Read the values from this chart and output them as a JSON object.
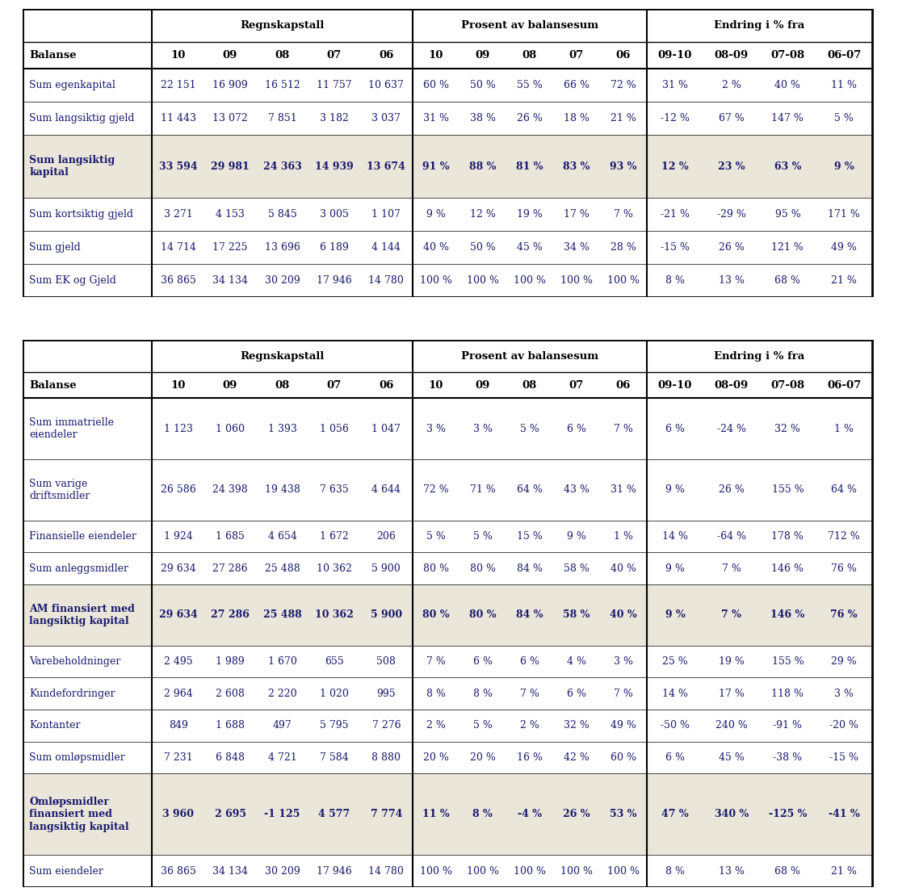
{
  "table1": {
    "title_sections": [
      "Regnskapstall",
      "Prosent av balansesum",
      "Endring i % fra"
    ],
    "col_header_label": "Balanse",
    "year_headers": [
      "10",
      "09",
      "08",
      "07",
      "06"
    ],
    "pct_headers": [
      "10",
      "09",
      "08",
      "07",
      "06"
    ],
    "chg_headers": [
      "09-10",
      "08-09",
      "07-08",
      "06-07"
    ],
    "rows": [
      {
        "label": "Sum egenkapital",
        "vals": [
          "22 151",
          "16 909",
          "16 512",
          "11 757",
          "10 637"
        ],
        "pct": [
          "60 %",
          "50 %",
          "55 %",
          "66 %",
          "72 %"
        ],
        "chg": [
          "31 %",
          "2 %",
          "40 %",
          "11 %"
        ],
        "highlight": false,
        "nlines": 1
      },
      {
        "label": "Sum langsiktig gjeld",
        "vals": [
          "11 443",
          "13 072",
          "7 851",
          "3 182",
          "3 037"
        ],
        "pct": [
          "31 %",
          "38 %",
          "26 %",
          "18 %",
          "21 %"
        ],
        "chg": [
          "-12 %",
          "67 %",
          "147 %",
          "5 %"
        ],
        "highlight": false,
        "nlines": 1
      },
      {
        "label": "Sum langsiktig\nkapital",
        "vals": [
          "33 594",
          "29 981",
          "24 363",
          "14 939",
          "13 674"
        ],
        "pct": [
          "91 %",
          "88 %",
          "81 %",
          "83 %",
          "93 %"
        ],
        "chg": [
          "12 %",
          "23 %",
          "63 %",
          "9 %"
        ],
        "highlight": true,
        "nlines": 2
      },
      {
        "label": "Sum kortsiktig gjeld",
        "vals": [
          "3 271",
          "4 153",
          "5 845",
          "3 005",
          "1 107"
        ],
        "pct": [
          "9 %",
          "12 %",
          "19 %",
          "17 %",
          "7 %"
        ],
        "chg": [
          "-21 %",
          "-29 %",
          "95 %",
          "171 %"
        ],
        "highlight": false,
        "nlines": 1
      },
      {
        "label": "Sum gjeld",
        "vals": [
          "14 714",
          "17 225",
          "13 696",
          "6 189",
          "4 144"
        ],
        "pct": [
          "40 %",
          "50 %",
          "45 %",
          "34 %",
          "28 %"
        ],
        "chg": [
          "-15 %",
          "26 %",
          "121 %",
          "49 %"
        ],
        "highlight": false,
        "nlines": 1
      },
      {
        "label": "Sum EK og Gjeld",
        "vals": [
          "36 865",
          "34 134",
          "30 209",
          "17 946",
          "14 780"
        ],
        "pct": [
          "100 %",
          "100 %",
          "100 %",
          "100 %",
          "100 %"
        ],
        "chg": [
          "8 %",
          "13 %",
          "68 %",
          "21 %"
        ],
        "highlight": false,
        "nlines": 1
      }
    ]
  },
  "table2": {
    "title_sections": [
      "Regnskapstall",
      "Prosent av balansesum",
      "Endring i % fra"
    ],
    "col_header_label": "Balanse",
    "year_headers": [
      "10",
      "09",
      "08",
      "07",
      "06"
    ],
    "pct_headers": [
      "10",
      "09",
      "08",
      "07",
      "06"
    ],
    "chg_headers": [
      "09-10",
      "08-09",
      "07-08",
      "06-07"
    ],
    "rows": [
      {
        "label": "Sum immatrielle\neiendeler",
        "vals": [
          "1 123",
          "1 060",
          "1 393",
          "1 056",
          "1 047"
        ],
        "pct": [
          "3 %",
          "3 %",
          "5 %",
          "6 %",
          "7 %"
        ],
        "chg": [
          "6 %",
          "-24 %",
          "32 %",
          "1 %"
        ],
        "highlight": false,
        "nlines": 2
      },
      {
        "label": "Sum varige\ndriftsmidler",
        "vals": [
          "26 586",
          "24 398",
          "19 438",
          "7 635",
          "4 644"
        ],
        "pct": [
          "72 %",
          "71 %",
          "64 %",
          "43 %",
          "31 %"
        ],
        "chg": [
          "9 %",
          "26 %",
          "155 %",
          "64 %"
        ],
        "highlight": false,
        "nlines": 2
      },
      {
        "label": "Finansielle eiendeler",
        "vals": [
          "1 924",
          "1 685",
          "4 654",
          "1 672",
          "206"
        ],
        "pct": [
          "5 %",
          "5 %",
          "15 %",
          "9 %",
          "1 %"
        ],
        "chg": [
          "14 %",
          "-64 %",
          "178 %",
          "712 %"
        ],
        "highlight": false,
        "nlines": 1
      },
      {
        "label": "Sum anleggsmidler",
        "vals": [
          "29 634",
          "27 286",
          "25 488",
          "10 362",
          "5 900"
        ],
        "pct": [
          "80 %",
          "80 %",
          "84 %",
          "58 %",
          "40 %"
        ],
        "chg": [
          "9 %",
          "7 %",
          "146 %",
          "76 %"
        ],
        "highlight": false,
        "nlines": 1
      },
      {
        "label": "AM finansiert med\nlangsiktig kapital",
        "vals": [
          "29 634",
          "27 286",
          "25 488",
          "10 362",
          "5 900"
        ],
        "pct": [
          "80 %",
          "80 %",
          "84 %",
          "58 %",
          "40 %"
        ],
        "chg": [
          "9 %",
          "7 %",
          "146 %",
          "76 %"
        ],
        "highlight": true,
        "nlines": 2
      },
      {
        "label": "Varebeholdninger",
        "vals": [
          "2 495",
          "1 989",
          "1 670",
          "655",
          "508"
        ],
        "pct": [
          "7 %",
          "6 %",
          "6 %",
          "4 %",
          "3 %"
        ],
        "chg": [
          "25 %",
          "19 %",
          "155 %",
          "29 %"
        ],
        "highlight": false,
        "nlines": 1
      },
      {
        "label": "Kundefordringer",
        "vals": [
          "2 964",
          "2 608",
          "2 220",
          "1 020",
          "995"
        ],
        "pct": [
          "8 %",
          "8 %",
          "7 %",
          "6 %",
          "7 %"
        ],
        "chg": [
          "14 %",
          "17 %",
          "118 %",
          "3 %"
        ],
        "highlight": false,
        "nlines": 1
      },
      {
        "label": "Kontanter",
        "vals": [
          "849",
          "1 688",
          "497",
          "5 795",
          "7 276"
        ],
        "pct": [
          "2 %",
          "5 %",
          "2 %",
          "32 %",
          "49 %"
        ],
        "chg": [
          "-50 %",
          "240 %",
          "-91 %",
          "-20 %"
        ],
        "highlight": false,
        "nlines": 1
      },
      {
        "label": "Sum omløpsmidler",
        "vals": [
          "7 231",
          "6 848",
          "4 721",
          "7 584",
          "8 880"
        ],
        "pct": [
          "20 %",
          "20 %",
          "16 %",
          "42 %",
          "60 %"
        ],
        "chg": [
          "6 %",
          "45 %",
          "-38 %",
          "-15 %"
        ],
        "highlight": false,
        "nlines": 1
      },
      {
        "label": "Omløpsmidler\nfinansiert med\nlangsiktig kapital",
        "vals": [
          "3 960",
          "2 695",
          "-1 125",
          "4 577",
          "7 774"
        ],
        "pct": [
          "11 %",
          "8 %",
          "-4 %",
          "26 %",
          "53 %"
        ],
        "chg": [
          "47 %",
          "340 %",
          "-125 %",
          "-41 %"
        ],
        "highlight": true,
        "nlines": 3
      },
      {
        "label": "Sum eiendeler",
        "vals": [
          "36 865",
          "34 134",
          "30 209",
          "17 946",
          "14 780"
        ],
        "pct": [
          "100 %",
          "100 %",
          "100 %",
          "100 %",
          "100 %"
        ],
        "chg": [
          "8 %",
          "13 %",
          "68 %",
          "21 %"
        ],
        "highlight": false,
        "nlines": 1
      }
    ]
  },
  "highlight_color": "#eae6da",
  "bg_color": "#ffffff",
  "border_color": "#000000",
  "text_color": "#1a1a6e",
  "header_text_color": "#000000",
  "font_size": 9.0,
  "header_font_size": 9.5
}
